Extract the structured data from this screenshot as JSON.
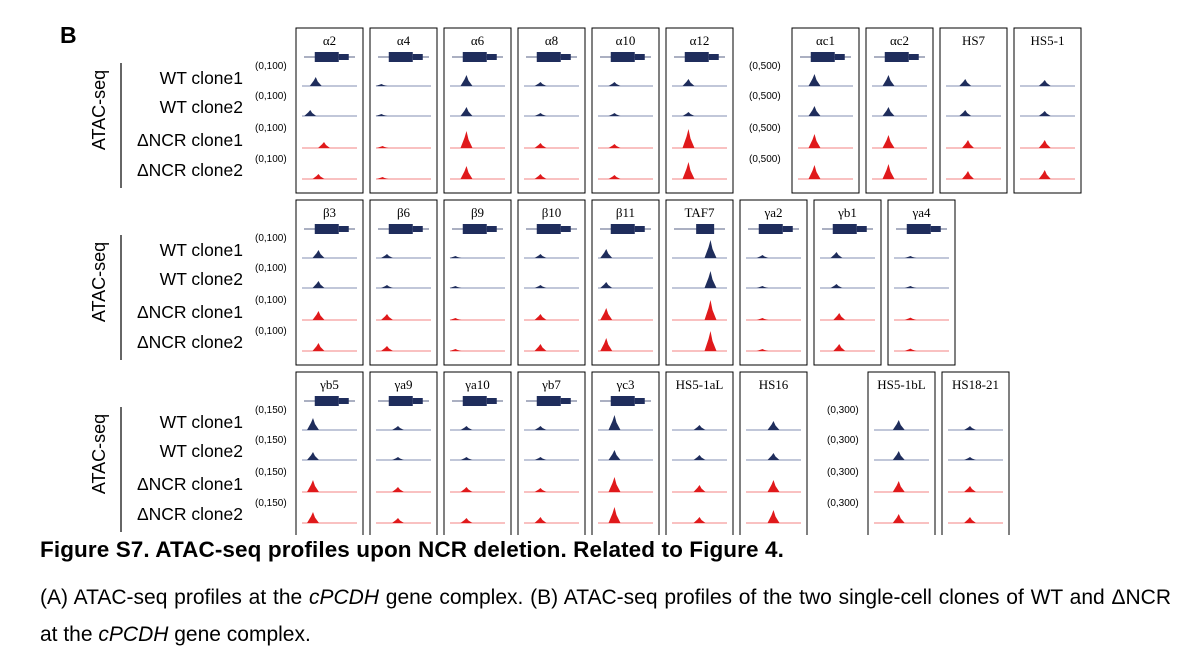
{
  "panel_letter": "B",
  "colors": {
    "wt": "#1f2d5c",
    "ncr": "#e0191b",
    "baseline_wt": "#5a6a9a",
    "baseline_ncr": "#ef5a5a",
    "box": "#000000"
  },
  "rows": [
    {
      "side_label": "ATAC-seq",
      "track_labels": [
        "WT clone1",
        "WT clone2",
        "ΔNCR clone1",
        "ΔNCR clone2"
      ],
      "groups": [
        {
          "scales": [
            "(0,100)",
            "(0,100)",
            "(0,100)",
            "(0,100)"
          ],
          "panels": [
            {
              "label": "α2",
              "gene": "long",
              "peaks": [
                [
                  0.25,
                  0.45
                ],
                [
                  0.15,
                  0.3
                ],
                [
                  0.4,
                  0.3
                ],
                [
                  0.3,
                  0.25
                ]
              ]
            },
            {
              "label": "α4",
              "gene": "long",
              "peaks": [
                [
                  0.1,
                  0.1
                ],
                [
                  0.1,
                  0.1
                ],
                [
                  0.12,
                  0.1
                ],
                [
                  0.12,
                  0.1
                ]
              ]
            },
            {
              "label": "α6",
              "gene": "long",
              "peaks": [
                [
                  0.3,
                  0.55
                ],
                [
                  0.3,
                  0.45
                ],
                [
                  0.3,
                  0.85
                ],
                [
                  0.3,
                  0.65
                ]
              ]
            },
            {
              "label": "α8",
              "gene": "long",
              "peaks": [
                [
                  0.3,
                  0.2
                ],
                [
                  0.3,
                  0.15
                ],
                [
                  0.3,
                  0.25
                ],
                [
                  0.3,
                  0.25
                ]
              ]
            },
            {
              "label": "α10",
              "gene": "long",
              "peaks": [
                [
                  0.3,
                  0.2
                ],
                [
                  0.3,
                  0.15
                ],
                [
                  0.3,
                  0.2
                ],
                [
                  0.3,
                  0.2
                ]
              ]
            },
            {
              "label": "α12",
              "gene": "long",
              "peaks": [
                [
                  0.3,
                  0.35
                ],
                [
                  0.3,
                  0.2
                ],
                [
                  0.3,
                  0.95
                ],
                [
                  0.3,
                  0.85
                ]
              ]
            }
          ]
        },
        {
          "scales": [
            "(0,500)",
            "(0,500)",
            "(0,500)",
            "(0,500)"
          ],
          "panels": [
            {
              "label": "αc1",
              "gene": "long",
              "peaks": [
                [
                  0.3,
                  0.6
                ],
                [
                  0.3,
                  0.5
                ],
                [
                  0.3,
                  0.7
                ],
                [
                  0.3,
                  0.7
                ]
              ]
            },
            {
              "label": "αc2",
              "gene": "long",
              "peaks": [
                [
                  0.3,
                  0.55
                ],
                [
                  0.3,
                  0.45
                ],
                [
                  0.3,
                  0.65
                ],
                [
                  0.3,
                  0.75
                ]
              ]
            },
            {
              "label": "HS7",
              "gene": "none",
              "peaks": [
                [
                  0.35,
                  0.35
                ],
                [
                  0.35,
                  0.3
                ],
                [
                  0.4,
                  0.4
                ],
                [
                  0.4,
                  0.4
                ]
              ]
            },
            {
              "label": "HS5-1",
              "gene": "none",
              "peaks": [
                [
                  0.45,
                  0.3
                ],
                [
                  0.45,
                  0.25
                ],
                [
                  0.45,
                  0.4
                ],
                [
                  0.45,
                  0.45
                ]
              ]
            }
          ]
        }
      ]
    },
    {
      "side_label": "ATAC-seq",
      "track_labels": [
        "WT clone1",
        "WT clone2",
        "ΔNCR clone1",
        "ΔNCR clone2"
      ],
      "groups": [
        {
          "scales": [
            "(0,100)",
            "(0,100)",
            "(0,100)",
            "(0,100)"
          ],
          "panels": [
            {
              "label": "β3",
              "gene": "long",
              "peaks": [
                [
                  0.3,
                  0.4
                ],
                [
                  0.3,
                  0.35
                ],
                [
                  0.3,
                  0.45
                ],
                [
                  0.3,
                  0.4
                ]
              ]
            },
            {
              "label": "β6",
              "gene": "long",
              "peaks": [
                [
                  0.2,
                  0.2
                ],
                [
                  0.2,
                  0.15
                ],
                [
                  0.2,
                  0.3
                ],
                [
                  0.2,
                  0.25
                ]
              ]
            },
            {
              "label": "β9",
              "gene": "long",
              "peaks": [
                [
                  0.1,
                  0.05
                ],
                [
                  0.1,
                  0.05
                ],
                [
                  0.1,
                  0.08
                ],
                [
                  0.1,
                  0.05
                ]
              ]
            },
            {
              "label": "β10",
              "gene": "long",
              "peaks": [
                [
                  0.3,
                  0.2
                ],
                [
                  0.3,
                  0.15
                ],
                [
                  0.3,
                  0.3
                ],
                [
                  0.3,
                  0.35
                ]
              ]
            },
            {
              "label": "β11",
              "gene": "long",
              "peaks": [
                [
                  0.15,
                  0.45
                ],
                [
                  0.15,
                  0.3
                ],
                [
                  0.15,
                  0.6
                ],
                [
                  0.15,
                  0.65
                ]
              ]
            },
            {
              "label": "TAF7",
              "gene": "taf",
              "peaks": [
                [
                  0.7,
                  0.9
                ],
                [
                  0.7,
                  0.85
                ],
                [
                  0.7,
                  1.0
                ],
                [
                  0.7,
                  1.0
                ]
              ]
            },
            {
              "label": "γa2",
              "gene": "long",
              "peaks": [
                [
                  0.3,
                  0.15
                ],
                [
                  0.3,
                  0.1
                ],
                [
                  0.3,
                  0.1
                ],
                [
                  0.3,
                  0.1
                ]
              ]
            },
            {
              "label": "γb1",
              "gene": "long",
              "peaks": [
                [
                  0.3,
                  0.3
                ],
                [
                  0.3,
                  0.2
                ],
                [
                  0.35,
                  0.35
                ],
                [
                  0.35,
                  0.35
                ]
              ]
            },
            {
              "label": "γa4",
              "gene": "long",
              "peaks": [
                [
                  0.3,
                  0.1
                ],
                [
                  0.3,
                  0.1
                ],
                [
                  0.3,
                  0.12
                ],
                [
                  0.3,
                  0.12
                ]
              ]
            }
          ]
        }
      ]
    },
    {
      "side_label": "ATAC-seq",
      "track_labels": [
        "WT clone1",
        "WT clone2",
        "ΔNCR clone1",
        "ΔNCR clone2"
      ],
      "groups": [
        {
          "scales": [
            "(0,150)",
            "(0,150)",
            "(0,150)",
            "(0,150)"
          ],
          "panels": [
            {
              "label": "γb5",
              "gene": "long",
              "peaks": [
                [
                  0.2,
                  0.6
                ],
                [
                  0.2,
                  0.4
                ],
                [
                  0.2,
                  0.6
                ],
                [
                  0.2,
                  0.55
                ]
              ]
            },
            {
              "label": "γa9",
              "gene": "long",
              "peaks": [
                [
                  0.4,
                  0.2
                ],
                [
                  0.4,
                  0.15
                ],
                [
                  0.4,
                  0.25
                ],
                [
                  0.4,
                  0.25
                ]
              ]
            },
            {
              "label": "γa10",
              "gene": "long",
              "peaks": [
                [
                  0.3,
                  0.2
                ],
                [
                  0.3,
                  0.15
                ],
                [
                  0.3,
                  0.25
                ],
                [
                  0.3,
                  0.25
                ]
              ]
            },
            {
              "label": "γb7",
              "gene": "long",
              "peaks": [
                [
                  0.3,
                  0.2
                ],
                [
                  0.3,
                  0.15
                ],
                [
                  0.3,
                  0.2
                ],
                [
                  0.3,
                  0.3
                ]
              ]
            },
            {
              "label": "γc3",
              "gene": "long",
              "peaks": [
                [
                  0.3,
                  0.75
                ],
                [
                  0.3,
                  0.5
                ],
                [
                  0.3,
                  0.75
                ],
                [
                  0.3,
                  0.8
                ]
              ]
            },
            {
              "label": "HS5-1aL",
              "gene": "none",
              "peaks": [
                [
                  0.5,
                  0.25
                ],
                [
                  0.5,
                  0.25
                ],
                [
                  0.5,
                  0.35
                ],
                [
                  0.5,
                  0.3
                ]
              ]
            },
            {
              "label": "HS16",
              "gene": "none",
              "peaks": [
                [
                  0.5,
                  0.45
                ],
                [
                  0.5,
                  0.35
                ],
                [
                  0.5,
                  0.6
                ],
                [
                  0.5,
                  0.65
                ]
              ]
            }
          ]
        },
        {
          "scales": [
            "(0,300)",
            "(0,300)",
            "(0,300)",
            "(0,300)"
          ],
          "panels": [
            {
              "label": "HS5-1bL",
              "gene": "none",
              "peaks": [
                [
                  0.45,
                  0.5
                ],
                [
                  0.45,
                  0.45
                ],
                [
                  0.45,
                  0.55
                ],
                [
                  0.45,
                  0.45
                ]
              ]
            },
            {
              "label": "HS18-21",
              "gene": "none",
              "peaks": [
                [
                  0.4,
                  0.2
                ],
                [
                  0.4,
                  0.15
                ],
                [
                  0.4,
                  0.3
                ],
                [
                  0.4,
                  0.3
                ]
              ]
            }
          ]
        }
      ]
    }
  ],
  "caption": {
    "title": "Figure S7. ATAC-seq profiles upon NCR deletion. Related to Figure 4.",
    "part_a_pre": "(A) ATAC-seq profiles at the ",
    "part_a_gene": "cPCDH",
    "part_a_post": " gene complex. (B) ATAC-seq profiles of the two single-cell clones of WT and ΔNCR at the ",
    "part_b_gene": "cPCDH",
    "part_b_post": " gene complex."
  }
}
